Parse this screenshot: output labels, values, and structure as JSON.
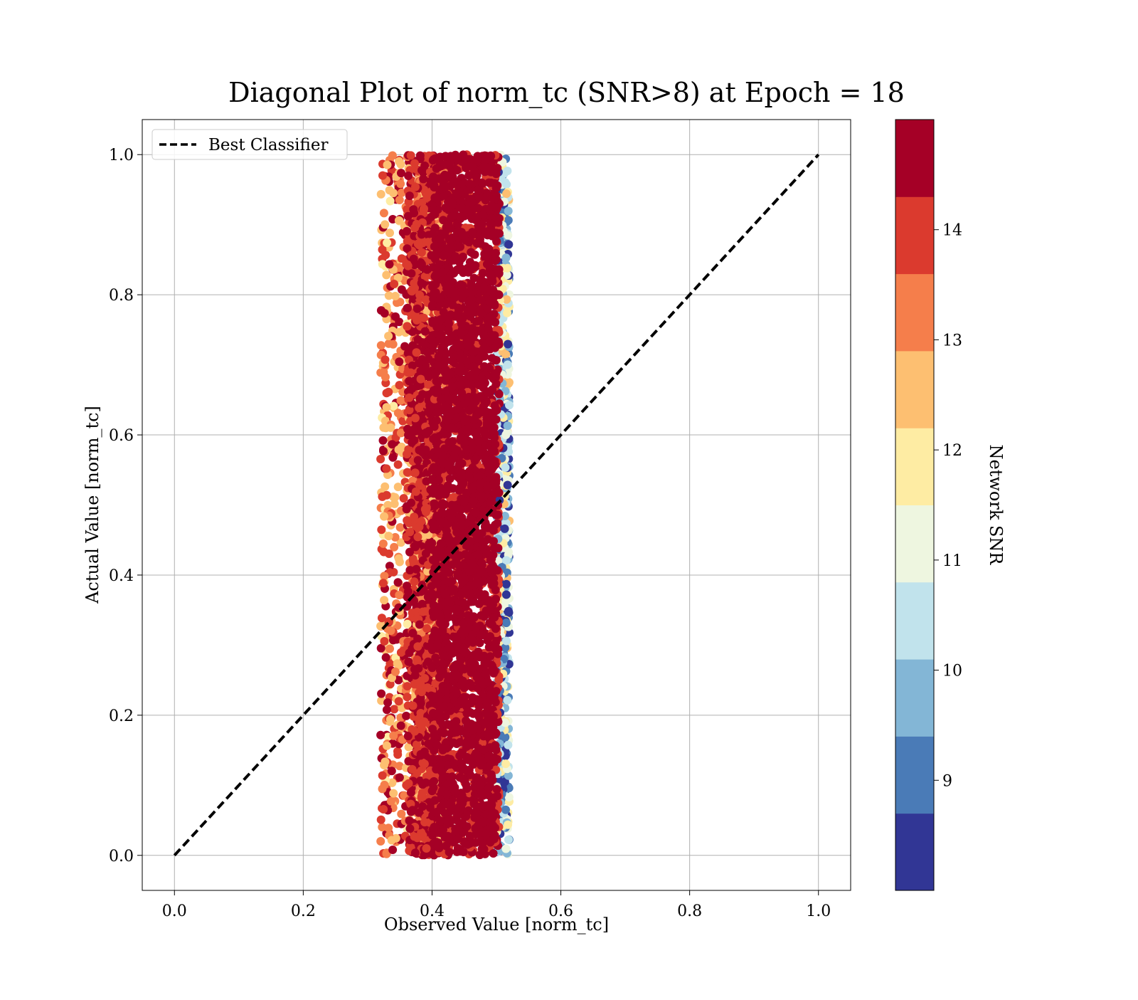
{
  "chart_data": {
    "type": "scatter",
    "title": "Diagonal Plot of norm_tc (SNR>8) at Epoch = 18",
    "xlabel": "Observed Value [norm_tc]",
    "ylabel": "Actual Value [norm_tc]",
    "xlim": [
      -0.05,
      1.05
    ],
    "ylim": [
      -0.05,
      1.05
    ],
    "xticks": [
      "0.0",
      "0.2",
      "0.4",
      "0.6",
      "0.8",
      "1.0"
    ],
    "yticks": [
      "0.0",
      "0.2",
      "0.4",
      "0.6",
      "0.8",
      "1.0"
    ],
    "xtick_values": [
      0.0,
      0.2,
      0.4,
      0.6,
      0.8,
      1.0
    ],
    "ytick_values": [
      0.0,
      0.2,
      0.4,
      0.6,
      0.8,
      1.0
    ],
    "grid": true,
    "legend": {
      "placement": "top-left",
      "entries": [
        "Best Classifier"
      ]
    },
    "reference_line": {
      "name": "Best Classifier",
      "x": [
        0.0,
        1.0
      ],
      "y": [
        0.0,
        1.0
      ],
      "style": "dashed",
      "color": "#000000"
    },
    "scatter_summary": {
      "x_range": [
        0.32,
        0.52
      ],
      "y_range": [
        0.0,
        1.0
      ],
      "dominant_x_range": [
        0.4,
        0.5
      ]
    },
    "colorbar": {
      "label": "Network SNR",
      "range": [
        8,
        15
      ],
      "tick_labels": [
        "9",
        "10",
        "11",
        "12",
        "13",
        "14"
      ],
      "tick_values": [
        9,
        10,
        11,
        12,
        13,
        14
      ],
      "color_bins": [
        "#313695",
        "#4575b4",
        "#74add1",
        "#abd9e9",
        "#e0f3f8",
        "#ffffbf",
        "#fee090",
        "#fdae61",
        "#f46d43",
        "#d73027",
        "#a50026"
      ],
      "colors": [
        "#313695",
        "#4a7bb7",
        "#83b6d6",
        "#c1e3ec",
        "#eef6e0",
        "#feeca3",
        "#fdbf71",
        "#f57e4b",
        "#db3a2e",
        "#a50026"
      ]
    }
  }
}
